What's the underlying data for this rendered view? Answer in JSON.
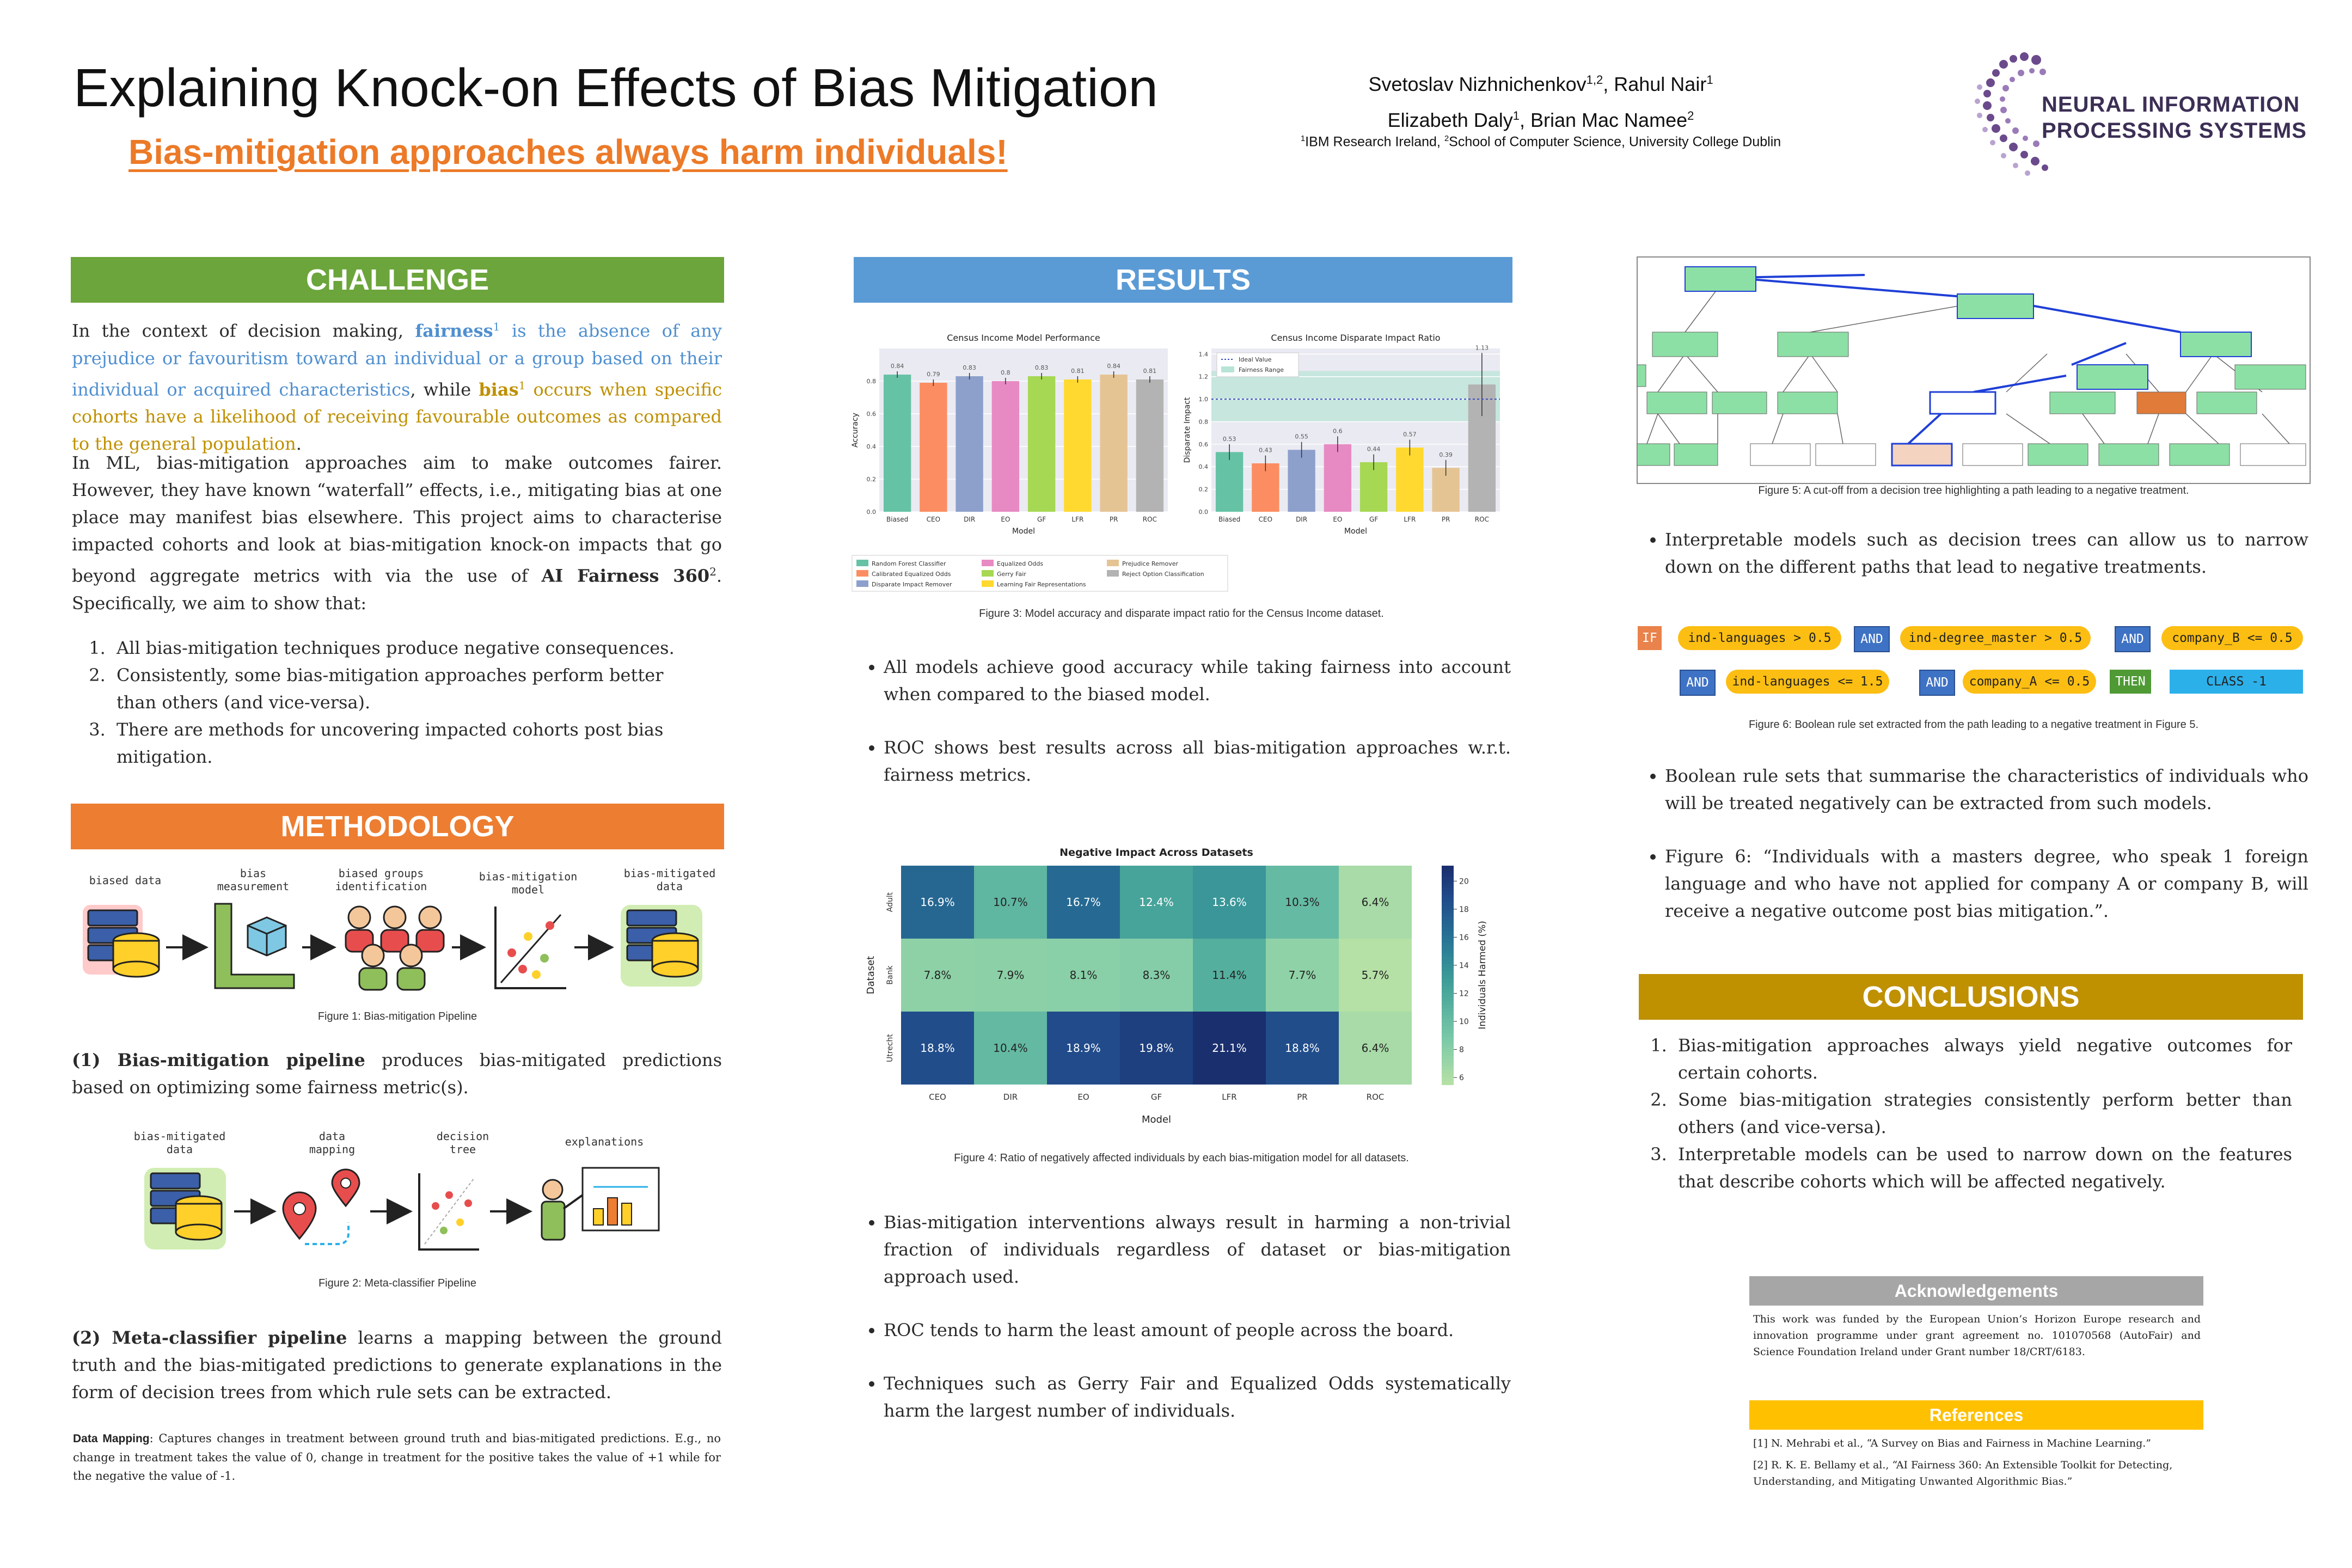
{
  "header": {
    "title": "Explaining Knock-on Effects of Bias Mitigation",
    "subtitle": "Bias-mitigation approaches always harm individuals!",
    "authors_line1": "Svetoslav Nizhnichenkov",
    "authors_sup1": "1,2",
    "authors_line1b": ", Rahul Nair",
    "authors_sup1b": "1",
    "authors_line2": "Elizabeth Daly",
    "authors_sup2": "1",
    "authors_line2b": ", Brian Mac Namee",
    "authors_sup2b": "2",
    "affil_sup1": "1",
    "affil_1": "IBM Research Ireland, ",
    "affil_sup2": "2",
    "affil_2": "School of Computer Science, University College Dublin",
    "logo_line1": "NEURAL INFORMATION",
    "logo_line2": "PROCESSING SYSTEMS"
  },
  "challenge": {
    "heading": "CHALLENGE",
    "p1_a": "In the context of decision making, ",
    "fairness": "fairness",
    "sup1": "1",
    "p1_b": " is the absence of any prejudice or favouritism toward an individual or a group based on their individual or acquired characteristics",
    "p1_c": ", while ",
    "bias": "bias",
    "sup2": "1",
    "p1_d": " occurs when specific cohorts have a likelihood of receiving favourable outcomes as compared to the general population",
    "p1_e": ".",
    "p2_a": "In ML, bias-mitigation approaches aim to make outcomes fairer. However, they have known “waterfall” effects, i.e., mitigating bias at one place may manifest bias elsewhere. This project aims to characterise impacted cohorts and look at bias-mitigation knock-on impacts that go beyond aggregate metrics with via the use of ",
    "aif": "AI Fairness 360",
    "aif_sup": "2",
    "p2_b": ". Specifically, we aim to show that:",
    "items": [
      "All bias-mitigation techniques produce negative consequences.",
      "Consistently, some bias-mitigation approaches perform better than others (and vice-versa).",
      "There are methods for uncovering impacted cohorts post bias mitigation."
    ]
  },
  "methodology": {
    "heading": "METHODOLOGY",
    "fig1_labels": [
      "biased data",
      "bias\nmeasurement",
      "biased groups\nidentification",
      "bias-mitigation\nmodel",
      "bias-mitigated\ndata"
    ],
    "fig1_caption": "Figure 1: Bias-mitigation Pipeline",
    "p1_bold": "(1) Bias-mitigation pipeline",
    "p1_rest": " produces bias-mitigated predictions based on optimizing some fairness metric(s).",
    "fig2_labels": [
      "bias-mitigated\ndata",
      "data\nmapping",
      "decision\ntree",
      "explanations"
    ],
    "fig2_caption": "Figure 2: Meta-classifier Pipeline",
    "p2_bold": "(2) Meta-classifier pipeline",
    "p2_rest": " learns a mapping between the ground truth and the bias-mitigated predictions to generate explanations in the form of decision trees from which rule sets can be extracted.",
    "note_bold": "Data Mapping",
    "note_rest": ": Captures changes in treatment between ground truth and bias-mitigated predictions. E.g., no change in treatment takes the value of 0, change in treatment for the positive takes the value of +1 while for the negative the value of -1."
  },
  "results": {
    "heading": "RESULTS",
    "fig3_caption": "Figure 3: Model accuracy and disparate impact ratio for the Census Income dataset.",
    "bullets_a": [
      "All models achieve good accuracy while taking fairness into account when compared to the biased model.",
      "ROC shows best results across all bias-mitigation approaches w.r.t. fairness metrics."
    ],
    "fig4_caption": "Figure 4: Ratio of negatively affected individuals by each bias-mitigation model for all datasets.",
    "bullets_b": [
      "Bias-mitigation interventions always result in harming a non-trivial fraction of individuals regardless of dataset or bias-mitigation approach used.",
      "ROC tends to harm the least amount of people across the board.",
      "Techniques such as Gerry Fair and Equalized Odds systematically harm the largest number of individuals."
    ]
  },
  "right": {
    "fig5_caption": "Figure 5: A cut-off from a decision tree highlighting a path leading to a negative treatment.",
    "bullet_1": "Interpretable models such as decision trees can allow us to narrow down on the different paths that lead to negative treatments.",
    "rule": {
      "if": "IF",
      "and": "AND",
      "then": "THEN",
      "c1": "ind-languages > 0.5",
      "c2": "ind-degree_master > 0.5",
      "c3": "company_B <= 0.5",
      "c4": "ind-languages <= 1.5",
      "c5": "company_A <= 0.5",
      "cls": "CLASS -1"
    },
    "fig6_caption": "Figure 6: Boolean rule set extracted from the path leading to a negative treatment in Figure 5.",
    "bullets_c": [
      "Boolean rule sets that summarise the characteristics of individuals who will be treated negatively can be extracted from such models.",
      "Figure 6: “Individuals with a masters degree, who speak 1 foreign language and who have not applied for company A or company B, will receive a negative outcome post bias mitigation.”."
    ],
    "conclusions_heading": "CONCLUSIONS",
    "conclusions": [
      "Bias-mitigation approaches always yield negative outcomes for certain cohorts.",
      "Some bias-mitigation strategies consistently perform better than others (and vice-versa).",
      "Interpretable models can be used to narrow down on the features that describe cohorts which will be affected negatively."
    ],
    "ack_heading": "Acknowledgements",
    "ack_text": "This work was funded by the European Union’s Horizon Europe research and innovation programme under grant agreement no. 101070568 (AutoFair) and Science Foundation Ireland under Grant number 18/CRT/6183.",
    "ref_heading": "References",
    "refs": [
      "[1] N. Mehrabi et al., “A Survey on Bias and Fairness in Machine Learning.”",
      "[2] R. K. E. Bellamy et al., “AI Fairness 360: An Extensible Toolkit for Detecting, Understanding, and Mitigating Unwanted Algorithmic Bias.”"
    ]
  },
  "colors": {
    "green": "#6ba53b",
    "orange": "#ed7d31",
    "blue": "#5b9bd5",
    "gold": "#bf9000",
    "ack_grey": "#a6a6a6",
    "ref_yellow": "#ffc000"
  },
  "chart_data": [
    {
      "type": "bar",
      "title": "Census Income Model Performance",
      "xlabel": "Model",
      "ylabel": "Accuracy",
      "categories": [
        "Biased",
        "CEO",
        "DIR",
        "EO",
        "GF",
        "LFR",
        "PR",
        "ROC"
      ],
      "values": [
        0.84,
        0.79,
        0.83,
        0.8,
        0.83,
        0.81,
        0.84,
        0.81
      ],
      "value_labels": [
        "0.84",
        "0.79",
        "0.83",
        "0.8",
        "0.83",
        "0.81",
        "0.84",
        "0.81"
      ],
      "ylim": [
        0,
        1.0
      ],
      "yticks": [
        "0.0",
        "0.2",
        "0.4",
        "0.6",
        "0.8"
      ],
      "colors": [
        "#66c2a5",
        "#fc8d62",
        "#8da0cb",
        "#e78ac3",
        "#a6d854",
        "#ffd92f",
        "#e5c494",
        "#b3b3b3"
      ],
      "legend": [
        "Random Forest Classifier",
        "Calibrated Equalized Odds",
        "Disparate Impact Remover",
        "Equalized Odds",
        "Gerry Fair",
        "Learning Fair Representations",
        "Prejudice Remover",
        "Reject Option Classification"
      ]
    },
    {
      "type": "bar",
      "title": "Census Income Disparate Impact Ratio",
      "xlabel": "Model",
      "ylabel": "Disparate Impact",
      "categories": [
        "Biased",
        "CEO",
        "DIR",
        "EO",
        "GF",
        "LFR",
        "PR",
        "ROC"
      ],
      "values": [
        0.53,
        0.43,
        0.55,
        0.6,
        0.44,
        0.57,
        0.39,
        1.13
      ],
      "value_labels": [
        "0.53",
        "0.43",
        "0.55",
        "0.6",
        "0.44",
        "0.57",
        "0.39",
        "1.13"
      ],
      "ylim": [
        0,
        1.45
      ],
      "yticks": [
        "0.0",
        "0.2",
        "0.4",
        "0.6",
        "0.8",
        "1.0",
        "1.2",
        "1.4"
      ],
      "legend": [
        "Ideal Value",
        "Fairness Range"
      ],
      "ideal_value": 1.0,
      "fairness_range": [
        0.8,
        1.25
      ]
    },
    {
      "type": "heatmap",
      "title": "Negative Impact Across Datasets",
      "xlabel": "Model",
      "ylabel": "Dataset",
      "colorbar_label": "Individuals Harmed (%)",
      "colorbar_ticks": [
        "6",
        "8",
        "10",
        "12",
        "14",
        "16",
        "18",
        "20"
      ],
      "x": [
        "CEO",
        "DIR",
        "EO",
        "GF",
        "LFR",
        "PR",
        "ROC"
      ],
      "y": [
        "Adult",
        "Bank",
        "Utrecht"
      ],
      "values": [
        [
          16.9,
          10.7,
          16.7,
          12.4,
          13.6,
          10.3,
          6.4
        ],
        [
          7.8,
          7.9,
          8.1,
          8.3,
          11.4,
          7.7,
          5.7
        ],
        [
          18.8,
          10.4,
          18.9,
          19.8,
          21.1,
          18.8,
          6.4
        ]
      ],
      "labels": [
        [
          "16.9%",
          "10.7%",
          "16.7%",
          "12.4%",
          "13.6%",
          "10.3%",
          "6.4%"
        ],
        [
          "7.8%",
          "7.9%",
          "8.1%",
          "8.3%",
          "11.4%",
          "7.7%",
          "5.7%"
        ],
        [
          "18.8%",
          "10.4%",
          "18.9%",
          "19.8%",
          "21.1%",
          "18.8%",
          "6.4%"
        ]
      ],
      "range": [
        5.5,
        21.1
      ]
    }
  ]
}
